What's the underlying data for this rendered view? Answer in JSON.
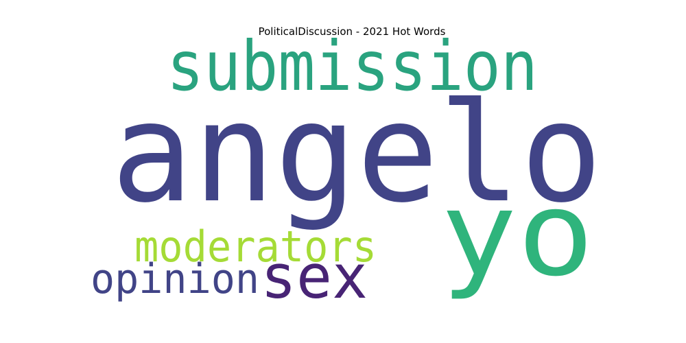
{
  "chart_data": {
    "type": "wordcloud",
    "title": "PoliticalDiscussion - 2021 Hot Words",
    "words": [
      {
        "text": "submission",
        "color": "#2aa37f"
      },
      {
        "text": "angelo",
        "color": "#414487"
      },
      {
        "text": "yo",
        "color": "#2fb47c"
      },
      {
        "text": "moderators",
        "color": "#a5db36"
      },
      {
        "text": "opinion",
        "color": "#414487"
      },
      {
        "text": "sex",
        "color": "#482475"
      }
    ]
  }
}
